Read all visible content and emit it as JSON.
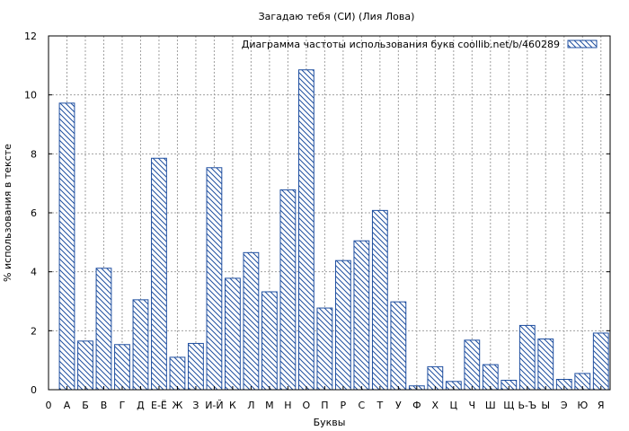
{
  "chart_data": {
    "type": "bar",
    "title": "Загадаю тебя (СИ) (Лия Лова)",
    "xlabel": "Буквы",
    "ylabel": "% использования в тексте",
    "legend_label": "Диаграмма частоты использования букв  coollib.net/b/460289",
    "legend_position": "top-right",
    "grid": true,
    "ylim": [
      0,
      12
    ],
    "y_ticks": [
      "0",
      "2",
      "4",
      "6",
      "8",
      "10",
      "12"
    ],
    "x_start_label": "0",
    "categories": [
      "А",
      "Б",
      "В",
      "Г",
      "Д",
      "Е-Ё",
      "Ж",
      "З",
      "И-Й",
      "К",
      "Л",
      "М",
      "Н",
      "О",
      "П",
      "Р",
      "С",
      "Т",
      "У",
      "Ф",
      "Х",
      "Ц",
      "Ч",
      "Ш",
      "Щ",
      "Ь-Ъ",
      "Ы",
      "Э",
      "Ю",
      "Я"
    ],
    "values": [
      9.72,
      1.65,
      4.12,
      1.53,
      3.05,
      7.85,
      1.1,
      1.57,
      7.53,
      3.78,
      4.65,
      3.32,
      6.78,
      10.85,
      2.77,
      4.38,
      5.05,
      6.08,
      2.98,
      0.13,
      0.78,
      0.28,
      1.68,
      0.85,
      0.32,
      2.18,
      1.72,
      0.35,
      0.55,
      1.92
    ],
    "colors": {
      "bar_stroke": "#1f4fa0",
      "hatch": "#1f4fa0",
      "grid": "#a0a0a0",
      "axis": "#000000"
    }
  }
}
